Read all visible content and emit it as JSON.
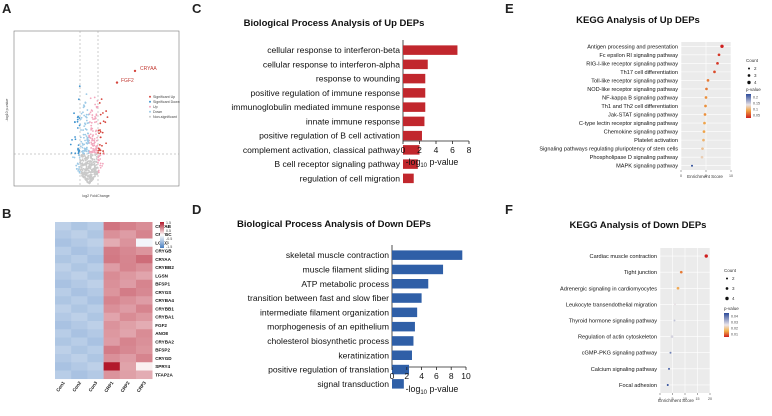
{
  "panel_letters": {
    "A": "A",
    "B": "B",
    "C": "C",
    "D": "D",
    "E": "E",
    "F": "F"
  },
  "chart_data": [
    {
      "id": "A",
      "type": "scatter",
      "subtype": "volcano",
      "xlabel": "log2 FoldChange",
      "ylabel": "-log10 p-value",
      "legend": [
        "Significant Up",
        "Significant Down",
        "Up",
        "Down",
        "Non-significant"
      ],
      "colors": {
        "sig_up": "#d6453d",
        "sig_down": "#3f93cf",
        "up": "#f2a7be",
        "down": "#9cc9e6",
        "nonsig": "#c9c9c9"
      },
      "annotations": [
        "CRYAA",
        "FGF2"
      ]
    },
    {
      "id": "B",
      "type": "heatmap",
      "rows": [
        "CRYAB",
        "CRYGC",
        "LGKC",
        "CRYGB",
        "CRYAA",
        "CRYBB2",
        "LGSN",
        "BFSP1",
        "CRYGS",
        "CRYBA4",
        "CRYBB1",
        "CRYBA1",
        "FGF2",
        "ANO8",
        "CRYBA2",
        "BFSP2",
        "CRYGD",
        "SPRY4",
        "TFAP2A"
      ],
      "columns": [
        "Con1",
        "Con2",
        "Con3",
        "CRP1",
        "CRP2",
        "CRP3"
      ],
      "legend_ticks": [
        "1.5",
        "1",
        "0.5",
        "0",
        "-0.5",
        "-1",
        "-1.5"
      ]
    },
    {
      "id": "C",
      "type": "bar",
      "orientation": "horizontal",
      "title": "Biological Process Analysis of Up DEPs",
      "categories": [
        "cellular response to interferon-beta",
        "cellular response to interferon-alpha",
        "response to wounding",
        "positive regulation of immune response",
        "immunoglobulin mediated immune response",
        "innate immune response",
        "positive regulation of B cell activation",
        "complement activation, classical pathway",
        "B cell receptor signaling pathway",
        "regulation of cell migration"
      ],
      "values": [
        6.6,
        3.0,
        2.7,
        2.7,
        2.7,
        2.6,
        2.3,
        2.0,
        1.8,
        1.3
      ],
      "xlim": [
        0,
        8
      ],
      "xticks": [
        "0",
        "2",
        "4",
        "6",
        "8"
      ],
      "xlabel": "-log10 p-value",
      "color": "#c1272d"
    },
    {
      "id": "D",
      "type": "bar",
      "orientation": "horizontal",
      "title": "Biological Process Analysis of Down DEPs",
      "categories": [
        "skeletal muscle contraction",
        "muscle filament sliding",
        "ATP metabolic process",
        "transition between fast and slow fiber",
        "intermediate filament organization",
        "morphogenesis of an epithelium",
        "cholesterol biosynthetic process",
        "keratinization",
        "positive regulation of translation",
        "signal transduction"
      ],
      "values": [
        9.5,
        6.9,
        4.9,
        4.0,
        3.4,
        3.1,
        2.9,
        2.7,
        2.3,
        1.6
      ],
      "xlim": [
        0,
        10
      ],
      "xticks": [
        "0",
        "2",
        "4",
        "6",
        "8",
        "10"
      ],
      "xlabel": "-log10 p-value",
      "color": "#2f5fa7"
    },
    {
      "id": "E",
      "type": "scatter",
      "subtype": "dotplot",
      "title": "KEGG Analysis of Up DEPs",
      "categories": [
        "Antigen processing and presentation",
        "Fc epsilon RI signaling pathway",
        "RIG-I-like receptor signaling pathway",
        "Th17 cell differentiation",
        "Toll-like receptor signaling pathway",
        "NOD-like receptor signaling pathway",
        "NF-kappa B signaling pathway",
        "Th1 and Th2 cell differentiation",
        "Jak-STAT signaling pathway",
        "C-type lectin receptor signaling pathway",
        "Chemokine signaling pathway",
        "Platelet activation",
        "Signaling pathways regulating pluripotency of stem cells",
        "Phospholipase D signaling pathway",
        "MAPK signaling pathway"
      ],
      "x": [
        8.2,
        7.6,
        7.3,
        6.7,
        5.4,
        5.1,
        5.0,
        4.9,
        4.8,
        4.7,
        4.6,
        4.5,
        4.3,
        4.2,
        2.2
      ],
      "counts": [
        4,
        3,
        3,
        3,
        3,
        3,
        3,
        3,
        3,
        3,
        3,
        3,
        3,
        3,
        2
      ],
      "pvalues": [
        0.01,
        0.02,
        0.02,
        0.03,
        0.05,
        0.05,
        0.06,
        0.06,
        0.06,
        0.07,
        0.07,
        0.08,
        0.09,
        0.1,
        0.2
      ],
      "xlim": [
        0,
        10
      ],
      "xticks": [
        "0",
        "5",
        "10"
      ],
      "xlabel": "Enrichment Score",
      "legend": {
        "count_title": "Count",
        "count_values": [
          "2",
          "3",
          "4"
        ],
        "p_title": "p-value",
        "p_ticks": [
          "0.2",
          "0.15",
          "0.1",
          "0.05"
        ]
      }
    },
    {
      "id": "F",
      "type": "scatter",
      "subtype": "dotplot",
      "title": "KEGG Analysis of Down DEPs",
      "categories": [
        "Cardiac muscle contraction",
        "Tight junction",
        "Adrenergic signaling in cardiomyocytes",
        "Leukocyte transendothelial migration",
        "Thyroid hormone signaling pathway",
        "Regulation of actin cytoskeleton",
        "cGMP-PKG signaling pathway",
        "Calcium signaling pathway",
        "Focal adhesion"
      ],
      "x": [
        18.5,
        8.5,
        7.2,
        6.0,
        5.8,
        4.8,
        4.2,
        3.6,
        3.1
      ],
      "counts": [
        4,
        3,
        3,
        2,
        2,
        3,
        2,
        2,
        2
      ],
      "pvalues": [
        0.003,
        0.012,
        0.017,
        0.026,
        0.03,
        0.028,
        0.038,
        0.042,
        0.045
      ],
      "xlim": [
        0,
        20
      ],
      "xticks": [
        "0",
        "5",
        "10",
        "15",
        "20"
      ],
      "xlabel": "Enrichment Score",
      "legend": {
        "count_title": "Count",
        "count_values": [
          "2",
          "3",
          "4"
        ],
        "p_title": "p-value",
        "p_ticks": [
          "0.04",
          "0.03",
          "0.02",
          "0.01"
        ]
      }
    }
  ]
}
